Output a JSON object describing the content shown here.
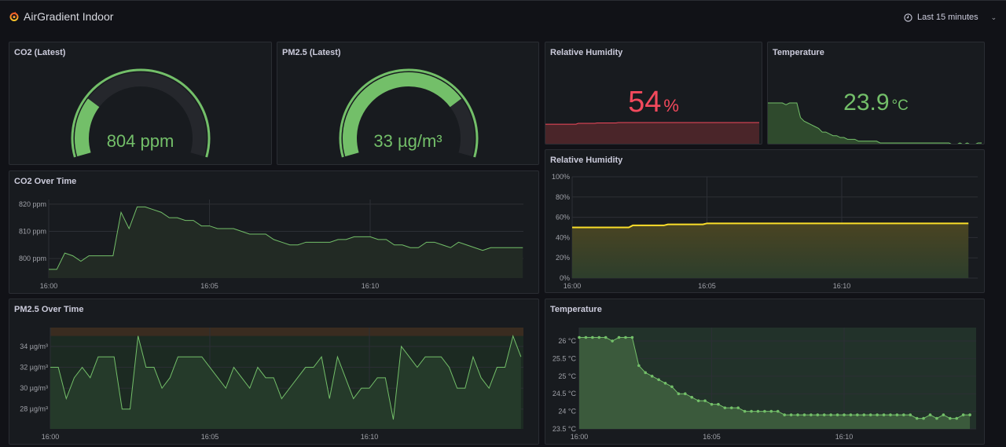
{
  "header": {
    "title": "AirGradient Indoor",
    "time_range": "Last 15 minutes"
  },
  "colors": {
    "green": "#73bf69",
    "yellow": "#fade2a",
    "red": "#f2495c",
    "panel_bg": "#181b1f"
  },
  "gauges": [
    {
      "title": "CO2 (Latest)",
      "value": "804",
      "unit": "ppm",
      "display": "804 ppm",
      "fill_fraction": 0.25,
      "color": "#73bf69"
    },
    {
      "title": "PM2.5 (Latest)",
      "value": "33",
      "unit": "µg/m³",
      "display": "33 µg/m³",
      "fill_fraction": 0.75,
      "color": "#73bf69"
    }
  ],
  "stats": [
    {
      "title": "Relative Humidity",
      "value": "54",
      "unit": "%",
      "color": "#f2495c"
    },
    {
      "title": "Temperature",
      "value": "23.9",
      "unit": "°C",
      "color": "#73bf69"
    }
  ],
  "chart_data": [
    {
      "id": "co2",
      "type": "area",
      "title": "CO2 Over Time",
      "xlabel": "",
      "ylabel": "ppm",
      "x_unit": "minutes after 16:00",
      "x_step": 0.25,
      "xticks": [
        "16:00",
        "16:05",
        "16:10"
      ],
      "yticks": [
        {
          "v": 800,
          "label": "800 ppm"
        },
        {
          "v": 810,
          "label": "810 ppm"
        },
        {
          "v": 820,
          "label": "820 ppm"
        }
      ],
      "ylim": [
        792.8,
        821.7
      ],
      "series": [
        {
          "name": "CO2",
          "color": "#73bf69",
          "values": [
            796,
            796,
            802,
            801,
            799,
            801,
            801,
            801,
            801,
            817,
            811,
            819,
            819,
            818,
            817,
            815,
            815,
            814,
            814,
            812,
            812,
            811,
            811,
            811,
            810,
            809,
            809,
            809,
            807,
            806,
            805,
            805,
            806,
            806,
            806,
            806,
            807,
            807,
            808,
            808,
            808,
            807,
            807,
            805,
            805,
            804,
            804,
            806,
            806,
            805,
            804,
            806,
            805,
            804,
            803,
            804,
            804,
            804,
            804,
            804
          ]
        }
      ]
    },
    {
      "id": "rh",
      "type": "area",
      "title": "Relative Humidity",
      "xlabel": "",
      "ylabel": "%",
      "xticks": [
        "16:00",
        "16:05",
        "16:10"
      ],
      "yticks": [
        {
          "v": 0,
          "label": "0%"
        },
        {
          "v": 20,
          "label": "20%"
        },
        {
          "v": 40,
          "label": "40%"
        },
        {
          "v": 60,
          "label": "60%"
        },
        {
          "v": 80,
          "label": "80%"
        },
        {
          "v": 100,
          "label": "100%"
        }
      ],
      "ylim": [
        0,
        100
      ],
      "series": [
        {
          "name": "Humidity",
          "color": "#fade2a",
          "x": [
            0,
            2.1,
            2.25,
            3.4,
            3.55,
            4.85,
            5.0,
            14.7
          ],
          "values": [
            50,
            50,
            52,
            52,
            53,
            53,
            54,
            54
          ]
        }
      ]
    },
    {
      "id": "pm",
      "type": "area",
      "title": "PM2.5 Over Time",
      "xlabel": "",
      "ylabel": "µg/m³",
      "x_unit": "minutes after 16:00",
      "x_step": 0.25,
      "xticks": [
        "16:00",
        "16:05",
        "16:10"
      ],
      "yticks": [
        {
          "v": 28,
          "label": "28 µg/m³"
        },
        {
          "v": 30,
          "label": "30 µg/m³"
        },
        {
          "v": 32,
          "label": "32 µg/m³"
        },
        {
          "v": 34,
          "label": "34 µg/m³"
        }
      ],
      "ylim": [
        26.1,
        35.8
      ],
      "threshold": 35,
      "series": [
        {
          "name": "PM2.5",
          "color": "#73bf69",
          "values": [
            32,
            32,
            29,
            31,
            32,
            31,
            33,
            33,
            33,
            28,
            28,
            35,
            32,
            32,
            30,
            31,
            33,
            33,
            33,
            33,
            32,
            31,
            30,
            32,
            31,
            30,
            32,
            31,
            31,
            29,
            30,
            31,
            32,
            32,
            33,
            29,
            33,
            31,
            29,
            30,
            30,
            31,
            31,
            27,
            34,
            33,
            32,
            33,
            33,
            33,
            32,
            30,
            30,
            33,
            31,
            30,
            32,
            32,
            35,
            33
          ]
        }
      ]
    },
    {
      "id": "temp",
      "type": "line",
      "title": "Temperature",
      "xlabel": "",
      "ylabel": "°C",
      "x_unit": "minutes after 16:00",
      "x_step": 0.25,
      "xticks": [
        "16:00",
        "16:05",
        "16:10"
      ],
      "yticks": [
        {
          "v": 23.5,
          "label": "23.5 °C"
        },
        {
          "v": 24,
          "label": "24 °C"
        },
        {
          "v": 24.5,
          "label": "24.5 °C"
        },
        {
          "v": 25,
          "label": "25 °C"
        },
        {
          "v": 25.5,
          "label": "25.5 °C"
        },
        {
          "v": 26,
          "label": "26 °C"
        }
      ],
      "ylim": [
        23.5,
        26.38
      ],
      "series": [
        {
          "name": "Temperature",
          "color": "#73bf69",
          "values": [
            26.1,
            26.1,
            26.1,
            26.1,
            26.1,
            26.0,
            26.1,
            26.1,
            26.1,
            25.3,
            25.1,
            25.0,
            24.9,
            24.8,
            24.7,
            24.5,
            24.5,
            24.4,
            24.3,
            24.3,
            24.2,
            24.2,
            24.1,
            24.1,
            24.1,
            24.0,
            24.0,
            24.0,
            24.0,
            24.0,
            24.0,
            23.9,
            23.9,
            23.9,
            23.9,
            23.9,
            23.9,
            23.9,
            23.9,
            23.9,
            23.9,
            23.9,
            23.9,
            23.9,
            23.9,
            23.9,
            23.9,
            23.9,
            23.9,
            23.9,
            23.9,
            23.8,
            23.8,
            23.9,
            23.8,
            23.9,
            23.8,
            23.8,
            23.9,
            23.9
          ]
        }
      ]
    }
  ]
}
